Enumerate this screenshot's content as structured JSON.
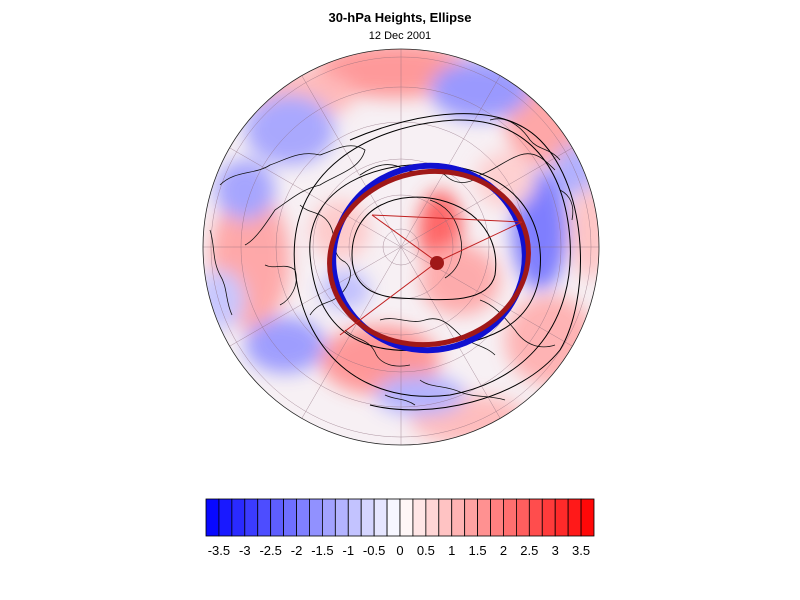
{
  "figure": {
    "title": "30-hPa Heights, Ellipse",
    "date": "12 Dec 2001"
  },
  "colors": {
    "ellipse_blue": "#1010d0",
    "ellipse_red": "#a01818",
    "colorbar_negative_end": "#0000ff",
    "colorbar_positive_end": "#ff0000"
  },
  "colorbar": {
    "tick_labels": [
      "-3.5",
      "-3",
      "-2.5",
      "-2",
      "-1.5",
      "-1",
      "-0.5",
      "0",
      "0.5",
      "1",
      "1.5",
      "2",
      "2.5",
      "3",
      "3.5"
    ],
    "range": [
      -3.75,
      3.75
    ],
    "interval": 0.25
  },
  "chart_data": {
    "type": "heatmap",
    "projection": "north-polar orthographic",
    "title": "30-hPa Heights, Ellipse",
    "subtitle": "12 Dec 2001",
    "color_scale": {
      "min": -3.75,
      "max": 3.75,
      "step": 0.25,
      "low_color": "#0000ff",
      "mid_color": "#ffffff",
      "high_color": "#ff0000"
    },
    "overlays": [
      "coastlines",
      "lat-lon graticule",
      "black height contours",
      "blue ellipse",
      "red ellipse",
      "red axis line",
      "center marker"
    ]
  }
}
